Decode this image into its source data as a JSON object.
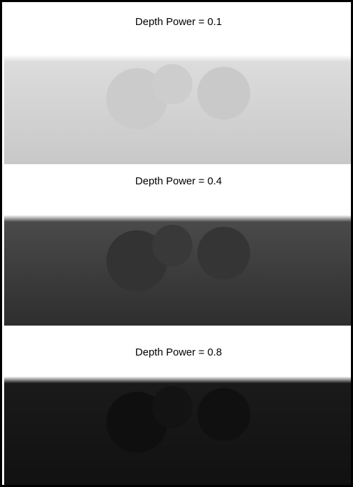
{
  "panels": [
    {
      "title": "Depth Power = 0.1",
      "bg_top": "#dcdcdc",
      "bg_bottom": "#c8c8c8",
      "sphere_colors": [
        "#cbcbcb",
        "#cdcdcd",
        "#c9c9c9"
      ]
    },
    {
      "title": "Depth Power = 0.4",
      "bg_top": "#4a4a4a",
      "bg_bottom": "#2e2e2e",
      "sphere_colors": [
        "#333333",
        "#393939",
        "#353535"
      ]
    },
    {
      "title": "Depth Power = 0.8",
      "bg_top": "#1a1a1a",
      "bg_bottom": "#111111",
      "sphere_colors": [
        "#0f0f0f",
        "#131313",
        "#101010"
      ]
    }
  ]
}
